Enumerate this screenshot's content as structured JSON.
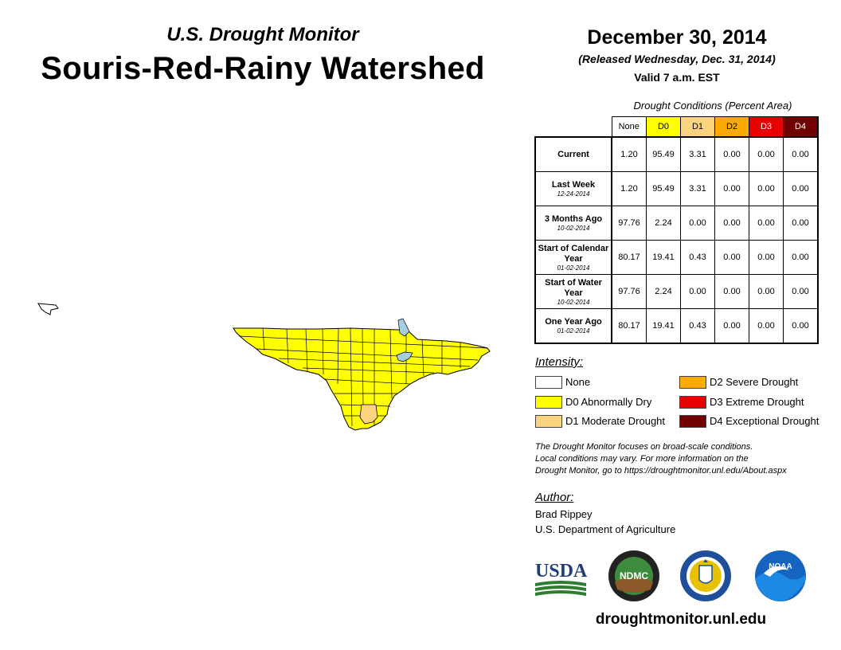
{
  "header": {
    "subtitle": "U.S. Drought Monitor",
    "title": "Souris-Red-Rainy Watershed",
    "date": "December 30, 2014",
    "released": "(Released Wednesday, Dec. 31, 2014)",
    "valid": "Valid 7 a.m. EST"
  },
  "table": {
    "caption": "Drought Conditions (Percent Area)",
    "columns": [
      "None",
      "D0",
      "D1",
      "D2",
      "D3",
      "D4"
    ],
    "rows": [
      {
        "label": "Current",
        "date": "",
        "values": [
          "1.20",
          "95.49",
          "3.31",
          "0.00",
          "0.00",
          "0.00"
        ]
      },
      {
        "label": "Last Week",
        "date": "12-24-2014",
        "values": [
          "1.20",
          "95.49",
          "3.31",
          "0.00",
          "0.00",
          "0.00"
        ]
      },
      {
        "label": "3 Months Ago",
        "date": "10-02-2014",
        "values": [
          "97.76",
          "2.24",
          "0.00",
          "0.00",
          "0.00",
          "0.00"
        ]
      },
      {
        "label": "Start of Calendar Year",
        "date": "01-02-2014",
        "values": [
          "80.17",
          "19.41",
          "0.43",
          "0.00",
          "0.00",
          "0.00"
        ]
      },
      {
        "label": "Start of Water Year",
        "date": "10-02-2014",
        "values": [
          "97.76",
          "2.24",
          "0.00",
          "0.00",
          "0.00",
          "0.00"
        ]
      },
      {
        "label": "One Year Ago",
        "date": "01-02-2014",
        "values": [
          "80.17",
          "19.41",
          "0.43",
          "0.00",
          "0.00",
          "0.00"
        ]
      }
    ]
  },
  "legend": {
    "heading": "Intensity:",
    "items": [
      {
        "label": "None",
        "color": "#ffffff"
      },
      {
        "label": "D0 Abnormally Dry",
        "color": "#ffff00"
      },
      {
        "label": "D1 Moderate Drought",
        "color": "#fcd37f"
      },
      {
        "label": "D2 Severe Drought",
        "color": "#ffaa00"
      },
      {
        "label": "D3 Extreme Drought",
        "color": "#e60000"
      },
      {
        "label": "D4 Exceptional Drought",
        "color": "#730000"
      }
    ]
  },
  "note": {
    "line1": "The Drought Monitor focuses on broad-scale conditions.",
    "line2": "Local conditions may vary. For more information on the",
    "line3": "Drought Monitor, go to https://droughtmonitor.unl.edu/About.aspx"
  },
  "author": {
    "heading": "Author:",
    "name": "Brad Rippey",
    "org": "U.S. Department of Agriculture"
  },
  "logos": {
    "usda": "USDA",
    "ndmc": "NDMC",
    "noaa": "NOAA"
  },
  "footer": {
    "url": "droughtmonitor.unl.edu"
  },
  "colors": {
    "water": "#a6cee3",
    "d0": "#ffff00",
    "d1": "#fcd37f"
  }
}
